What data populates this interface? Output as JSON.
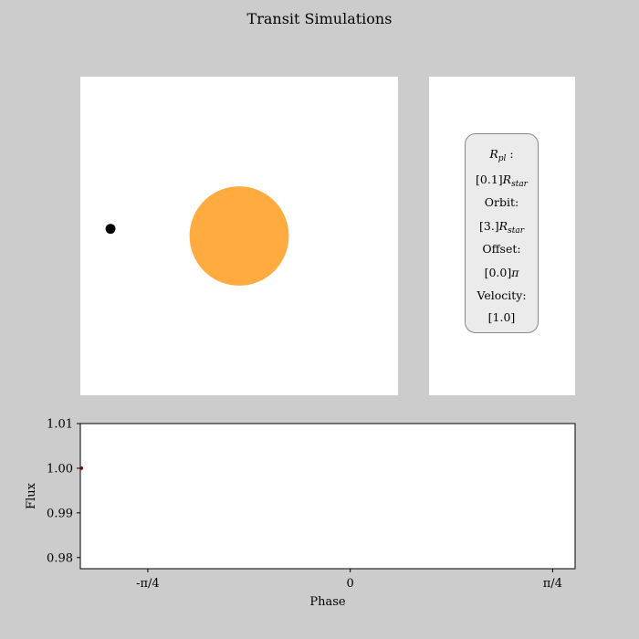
{
  "title": "Transit Simulations",
  "colors": {
    "background": "#cccccc",
    "star": "#ffab40",
    "planet": "#000000",
    "flux_marker": "#8b0000"
  },
  "info": {
    "rpl_label": "R",
    "rpl_sub": "pl",
    "rpl_suffix": ":",
    "rpl_value": "[0.1]",
    "orbit_label": "Orbit:",
    "orbit_value": "[3.]",
    "star_letter": "R",
    "star_sub": "star",
    "offset_label": "Offset:",
    "offset_value": "[0.0]",
    "pi_symbol": "π",
    "velocity_label": "Velocity:",
    "velocity_value": "[1.0]"
  },
  "chart_data": [
    {
      "type": "scatter",
      "title": "",
      "description": "Transit simulation view: star and orbiting planet",
      "xlim": [
        -4,
        4
      ],
      "ylim": [
        -4,
        4
      ],
      "bodies": [
        {
          "name": "star",
          "x": 0.0,
          "y": 0.0,
          "radius": 1.25
        },
        {
          "name": "planet",
          "x": -3.24,
          "y": 0.18,
          "radius": 0.125
        }
      ]
    },
    {
      "type": "line",
      "title": "",
      "xlabel": "Phase",
      "ylabel": "Flux",
      "xlim": [
        -1.0472,
        0.8726
      ],
      "ylim": [
        0.9775,
        1.01
      ],
      "xticks": [
        {
          "value": -0.7854,
          "label": "-π/4"
        },
        {
          "value": 0.0,
          "label": "0"
        },
        {
          "value": 0.7854,
          "label": "π/4"
        }
      ],
      "yticks": [
        {
          "value": 0.98,
          "label": "0.98"
        },
        {
          "value": 0.99,
          "label": "0.99"
        },
        {
          "value": 1.0,
          "label": "1.00"
        },
        {
          "value": 1.01,
          "label": "1.01"
        }
      ],
      "series": [
        {
          "x": [
            -1.0472
          ],
          "y": [
            1.0
          ]
        }
      ]
    }
  ]
}
